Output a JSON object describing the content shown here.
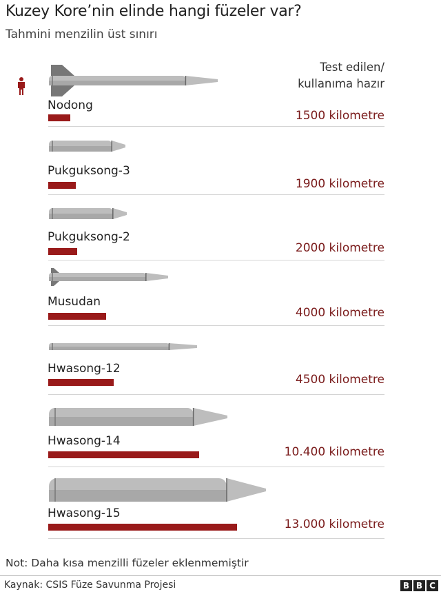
{
  "title": "Kuzey Kore’nin elinde hangi füzeler var?",
  "subtitle": "Tahmini menzilin üst sınırı",
  "legend": {
    "line1": "Test edilen/",
    "line2": "kullanıma hazır"
  },
  "chart_data": {
    "type": "bar",
    "title": "Kuzey Kore’nin elinde hangi füzeler var?",
    "subtitle": "Tahmini menzilin üst sınırı",
    "categories": [
      "Nodong",
      "Pukguksong-3",
      "Pukguksong-2",
      "Musudan",
      "Hwasong-12",
      "Hwasong-14",
      "Hwasong-15"
    ],
    "values": [
      1500,
      1900,
      2000,
      4000,
      4500,
      10400,
      13000
    ],
    "value_labels": [
      "1500 kilometre",
      "1900 kilometre",
      "2000 kilometre",
      "4000 kilometre",
      "4500 kilometre",
      "10.400 kilometre",
      "13.000 kilometre"
    ],
    "orientation": "horizontal",
    "bar_color": "#991a1a",
    "grid": false
  },
  "note": "Not: Daha kısa menzilli füzeler eklenmemiştir",
  "source": "Kaynak: CSIS Füze Savunma Projesi",
  "logo": "BBC",
  "icons": {
    "scale_person": "person-icon"
  }
}
